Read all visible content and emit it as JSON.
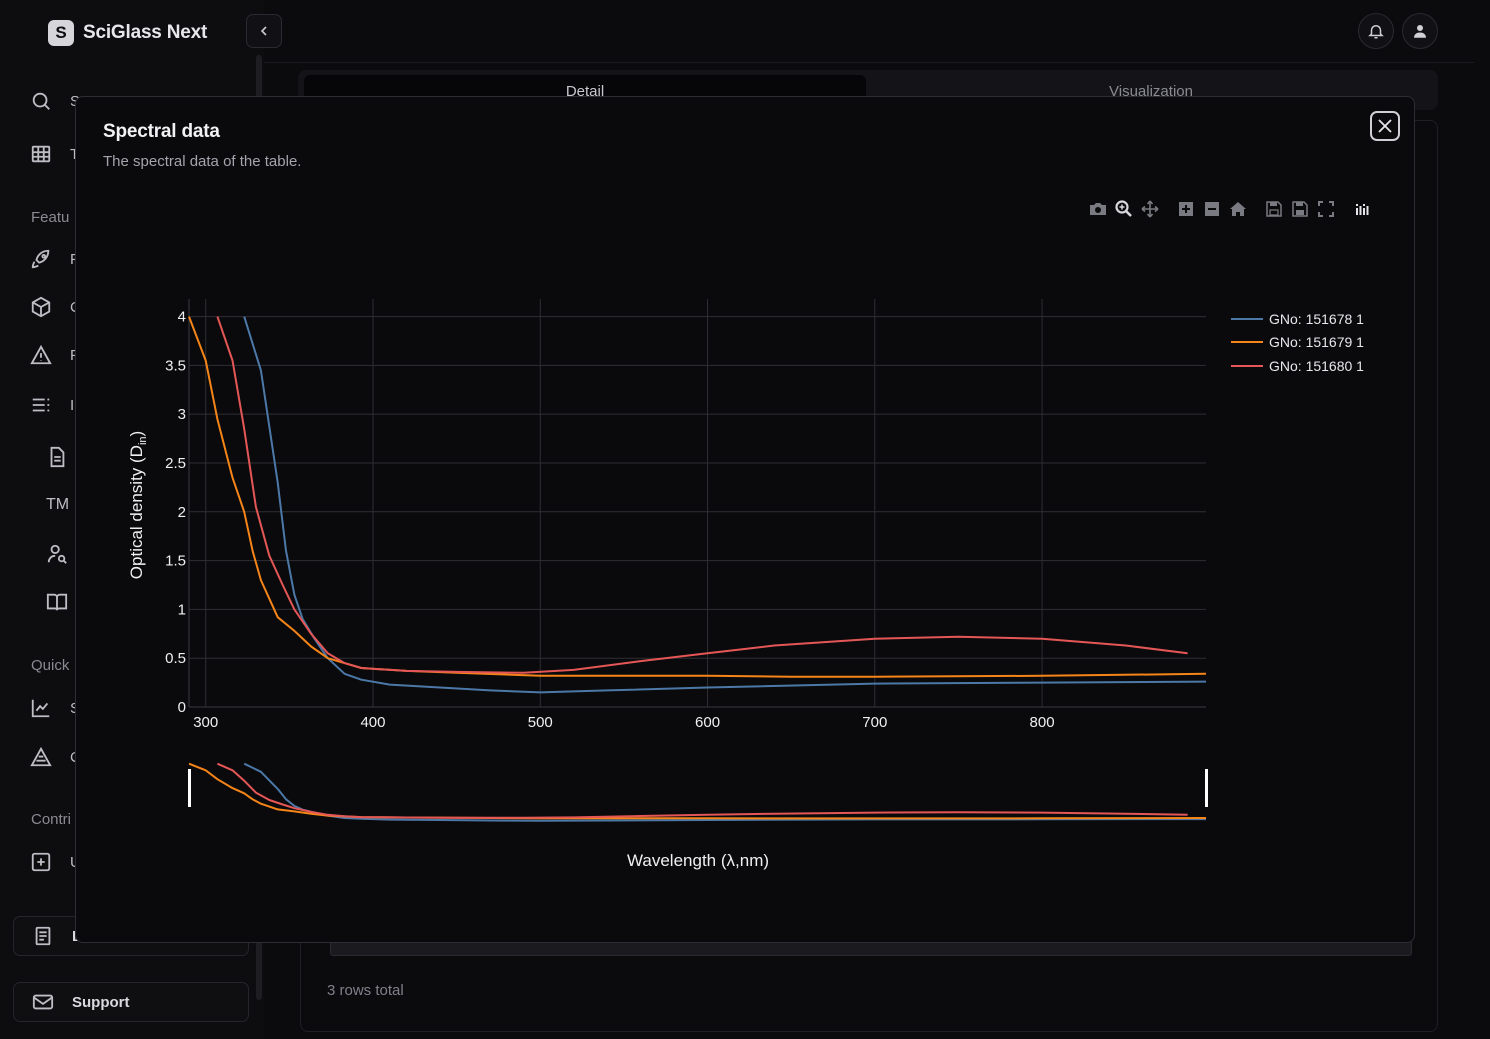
{
  "app": {
    "brand_letter": "S",
    "brand_name": "SciGlass Next"
  },
  "sidebar": {
    "items": [
      {
        "label": "S",
        "icon": "search-icon"
      },
      {
        "label": "T",
        "icon": "table-icon"
      },
      {
        "label": "F",
        "icon": "rocket-icon"
      },
      {
        "label": "C",
        "icon": "cube-icon"
      },
      {
        "label": "F",
        "icon": "warning-icon"
      },
      {
        "label": "I",
        "icon": "list-icon"
      }
    ],
    "sections": {
      "features": "Featu",
      "quick": "Quick",
      "contrib": "Contri"
    },
    "sub_items": [
      {
        "label": "",
        "icon": "document-icon"
      },
      {
        "label": "TM",
        "icon": "trademark-text"
      },
      {
        "label": "",
        "icon": "user-search-icon"
      },
      {
        "label": "",
        "icon": "book-icon"
      }
    ],
    "quick_items": [
      {
        "label": "S",
        "icon": "chart-line-icon"
      },
      {
        "label": "C",
        "icon": "triangle-icon"
      }
    ],
    "contrib_items": [
      {
        "label": "U",
        "icon": "plus-square-icon"
      }
    ],
    "bottom": [
      {
        "label": "L",
        "icon": "file-icon"
      },
      {
        "label": "Support",
        "icon": "mail-icon"
      }
    ]
  },
  "background": {
    "tabs": [
      {
        "label": "Detail"
      },
      {
        "label": "Visualization"
      }
    ],
    "rows_total": "3 rows total"
  },
  "modal": {
    "title": "Spectral data",
    "description": "The spectral data of the table."
  },
  "colors": {
    "series1": "#4c78a8",
    "series2": "#f58518",
    "series3": "#e45756"
  },
  "chart_data": {
    "type": "line",
    "xlabel": "Wavelength (λ,nm)",
    "ylabel_main": "Optical density (D",
    "ylabel_sub": "in",
    "ylabel_close": ")",
    "xlim": [
      290,
      898
    ],
    "ylim": [
      0,
      4.18
    ],
    "x_ticks": [
      300,
      400,
      500,
      600,
      700,
      800
    ],
    "y_ticks": [
      {
        "value": 0,
        "label": "0"
      },
      {
        "value": 0.5,
        "label": "0.5"
      },
      {
        "value": 1,
        "label": "1"
      },
      {
        "value": 1.5,
        "label": "1.5"
      },
      {
        "value": 2,
        "label": "2"
      },
      {
        "value": 2.5,
        "label": "2.5"
      },
      {
        "value": 3,
        "label": "3"
      },
      {
        "value": 3.5,
        "label": "3.5"
      },
      {
        "value": 4,
        "label": "4"
      }
    ],
    "grid": true,
    "legend_position": "top-right",
    "series": [
      {
        "name": "GNo: 151678 1",
        "color": "#4c78a8",
        "points": [
          [
            323,
            4.0
          ],
          [
            333,
            3.45
          ],
          [
            343,
            2.3
          ],
          [
            348,
            1.6
          ],
          [
            353,
            1.15
          ],
          [
            358,
            0.9
          ],
          [
            365,
            0.7
          ],
          [
            373,
            0.5
          ],
          [
            383,
            0.34
          ],
          [
            393,
            0.28
          ],
          [
            410,
            0.23
          ],
          [
            440,
            0.2
          ],
          [
            470,
            0.17
          ],
          [
            500,
            0.15
          ],
          [
            540,
            0.17
          ],
          [
            600,
            0.2
          ],
          [
            700,
            0.24
          ],
          [
            800,
            0.25
          ],
          [
            898,
            0.26
          ]
        ]
      },
      {
        "name": "GNo: 151679 1",
        "color": "#f58518",
        "points": [
          [
            290,
            4.0
          ],
          [
            300,
            3.55
          ],
          [
            307,
            2.95
          ],
          [
            316,
            2.35
          ],
          [
            323,
            2.0
          ],
          [
            328,
            1.6
          ],
          [
            333,
            1.3
          ],
          [
            343,
            0.92
          ],
          [
            353,
            0.78
          ],
          [
            363,
            0.62
          ],
          [
            373,
            0.5
          ],
          [
            393,
            0.4
          ],
          [
            420,
            0.37
          ],
          [
            450,
            0.35
          ],
          [
            500,
            0.32
          ],
          [
            550,
            0.32
          ],
          [
            600,
            0.32
          ],
          [
            650,
            0.31
          ],
          [
            700,
            0.31
          ],
          [
            800,
            0.32
          ],
          [
            898,
            0.34
          ]
        ]
      },
      {
        "name": "GNo: 151680 1",
        "color": "#e45756",
        "points": [
          [
            307,
            4.0
          ],
          [
            316,
            3.55
          ],
          [
            323,
            2.85
          ],
          [
            330,
            2.05
          ],
          [
            338,
            1.55
          ],
          [
            346,
            1.25
          ],
          [
            353,
            1.0
          ],
          [
            363,
            0.75
          ],
          [
            373,
            0.55
          ],
          [
            383,
            0.45
          ],
          [
            393,
            0.4
          ],
          [
            420,
            0.37
          ],
          [
            450,
            0.36
          ],
          [
            490,
            0.35
          ],
          [
            520,
            0.38
          ],
          [
            560,
            0.47
          ],
          [
            600,
            0.55
          ],
          [
            640,
            0.63
          ],
          [
            700,
            0.7
          ],
          [
            750,
            0.72
          ],
          [
            800,
            0.7
          ],
          [
            850,
            0.63
          ],
          [
            887,
            0.55
          ]
        ]
      }
    ]
  }
}
